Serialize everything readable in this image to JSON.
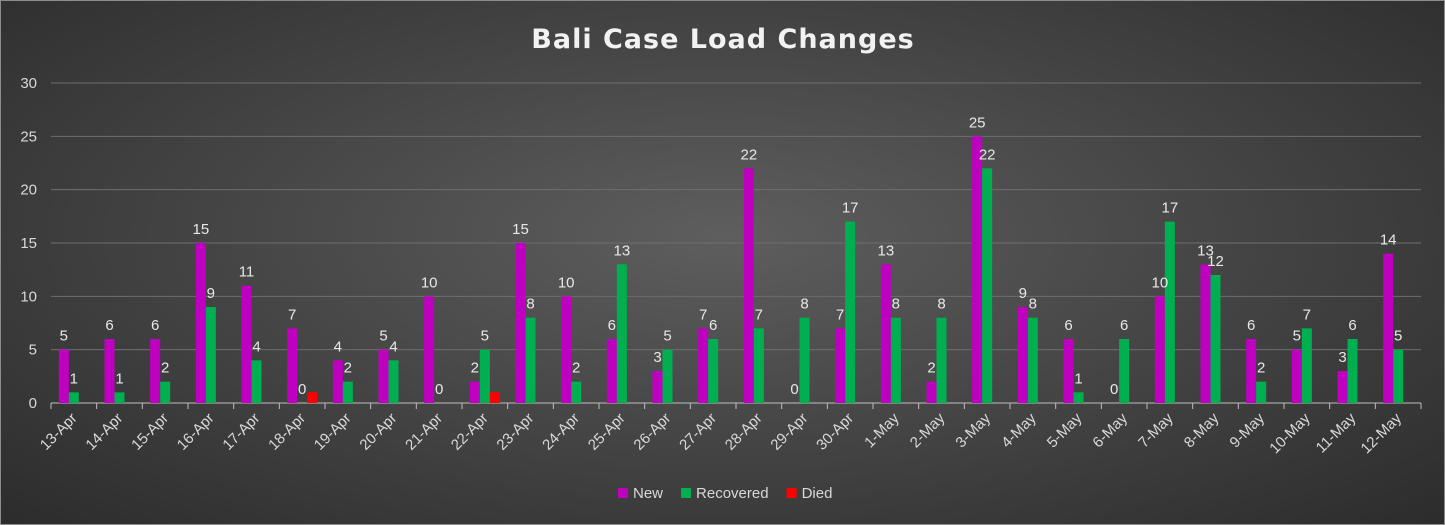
{
  "chart_data": {
    "type": "bar",
    "title": "Bali Case Load Changes",
    "xlabel": "",
    "ylabel": "",
    "ylim": [
      0,
      30
    ],
    "yticks": [
      0,
      5,
      10,
      15,
      20,
      25,
      30
    ],
    "grid": true,
    "legend_position": "bottom",
    "categories": [
      "13-Apr",
      "14-Apr",
      "15-Apr",
      "16-Apr",
      "17-Apr",
      "18-Apr",
      "19-Apr",
      "20-Apr",
      "21-Apr",
      "22-Apr",
      "23-Apr",
      "24-Apr",
      "25-Apr",
      "26-Apr",
      "27-Apr",
      "28-Apr",
      "29-Apr",
      "30-Apr",
      "1-May",
      "2-May",
      "3-May",
      "4-May",
      "5-May",
      "6-May",
      "7-May",
      "8-May",
      "9-May",
      "10-May",
      "11-May",
      "12-May"
    ],
    "series": [
      {
        "name": "New",
        "color": "#c000c0",
        "values": [
          5,
          6,
          6,
          15,
          11,
          7,
          4,
          5,
          10,
          2,
          15,
          10,
          6,
          3,
          7,
          22,
          0,
          7,
          13,
          2,
          25,
          9,
          6,
          0,
          10,
          13,
          6,
          5,
          3,
          14
        ],
        "labels": [
          "5",
          "6",
          "6",
          "15",
          "11",
          "7",
          "4",
          "5",
          "10",
          "2",
          "15",
          "10",
          "6",
          "3",
          "7",
          "22",
          "0",
          "7",
          "13",
          "2",
          "25",
          "9",
          "6",
          "0",
          "10",
          "13",
          "6",
          "5",
          "3",
          "14"
        ]
      },
      {
        "name": "Recovered",
        "color": "#00b050",
        "values": [
          1,
          1,
          2,
          9,
          4,
          0,
          2,
          4,
          0,
          5,
          8,
          2,
          13,
          5,
          6,
          7,
          8,
          17,
          8,
          8,
          22,
          8,
          1,
          6,
          17,
          12,
          2,
          7,
          6,
          5
        ],
        "labels": [
          "1",
          "1",
          "2",
          "9",
          "4",
          "0",
          "2",
          "4",
          "0",
          "5",
          "8",
          "2",
          "13",
          "5",
          "6",
          "7",
          "8",
          "17",
          "8",
          "8",
          "22",
          "8",
          "1",
          "6",
          "17",
          "12",
          "2",
          "7",
          "6",
          "5"
        ]
      },
      {
        "name": "Died",
        "color": "#ff0000",
        "values": [
          0,
          0,
          0,
          0,
          0,
          1,
          0,
          0,
          0,
          1,
          0,
          0,
          0,
          0,
          0,
          0,
          0,
          0,
          0,
          0,
          0,
          0,
          0,
          0,
          0,
          0,
          0,
          0,
          0,
          0
        ],
        "labels": [
          "",
          "",
          "",
          "",
          "",
          "",
          "",
          "",
          "",
          "",
          "",
          "",
          "",
          "",
          "",
          "",
          "",
          "",
          "",
          "",
          "",
          "",
          "",
          "",
          "",
          "",
          "",
          "",
          "",
          ""
        ]
      }
    ]
  }
}
